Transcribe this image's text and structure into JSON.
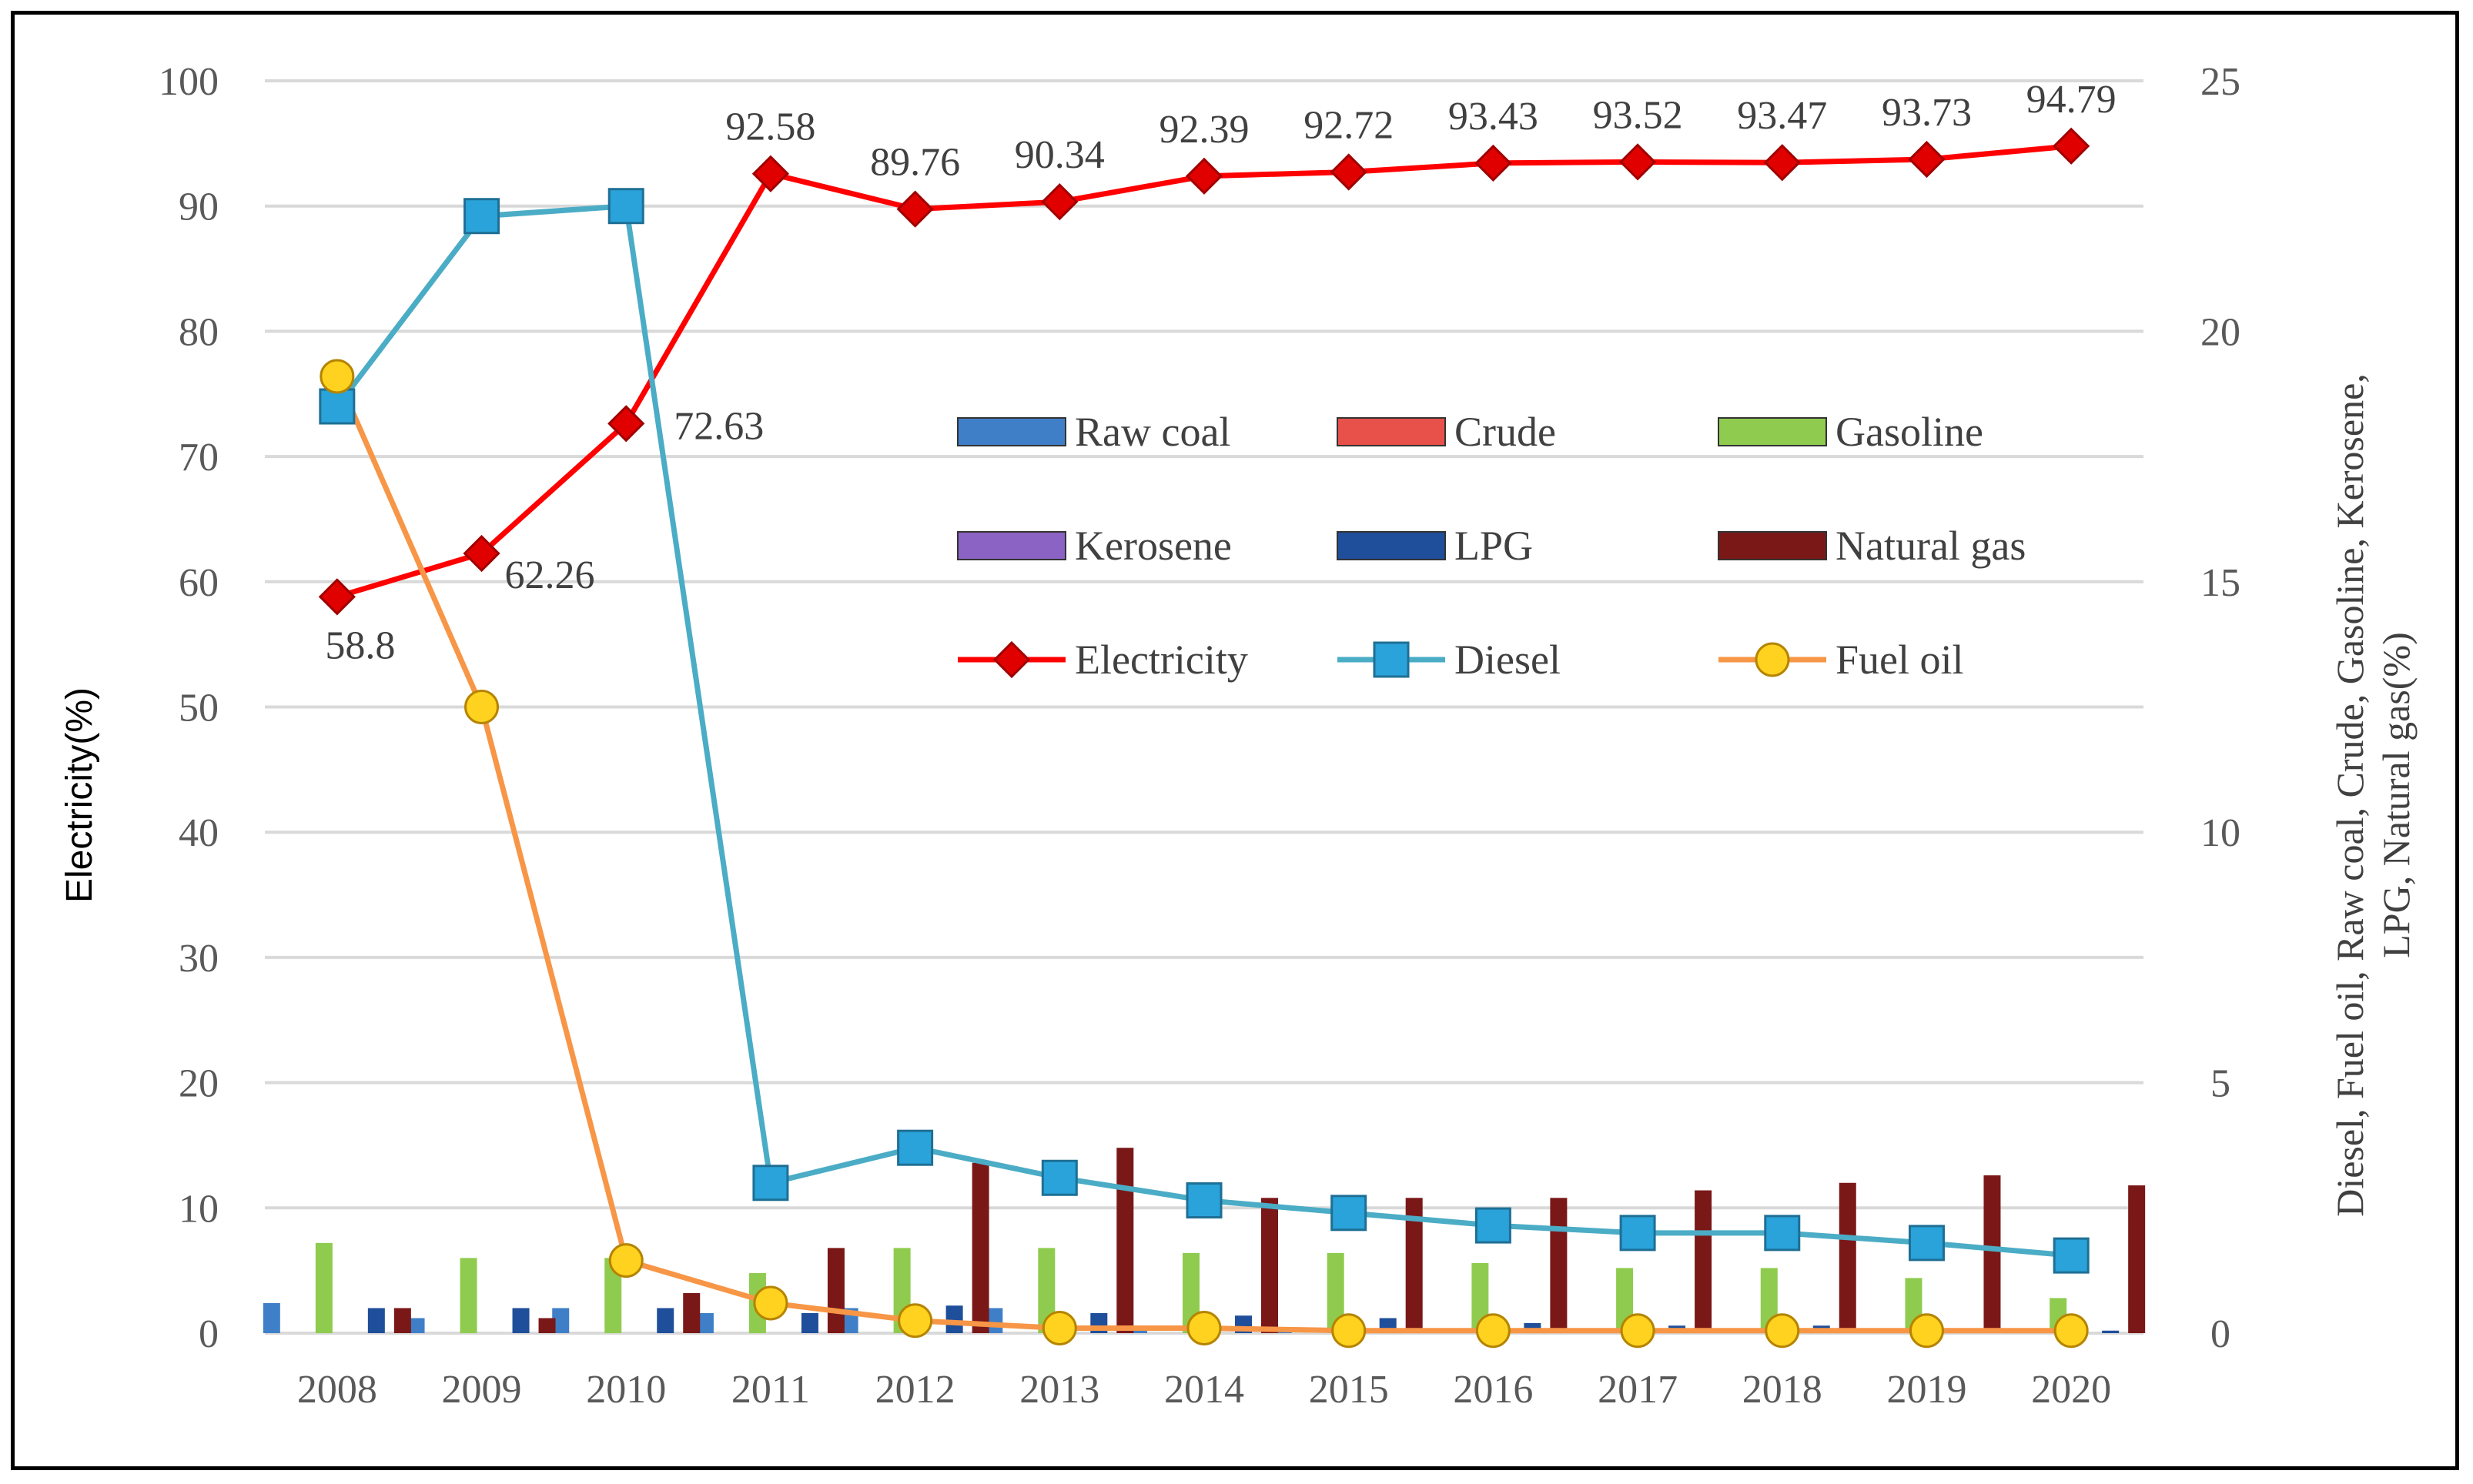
{
  "chart_data": {
    "type": "bar",
    "title": "",
    "categories": [
      "2008",
      "2009",
      "2010",
      "2011",
      "2012",
      "2013",
      "2014",
      "2015",
      "2016",
      "2017",
      "2018",
      "2019",
      "2020"
    ],
    "left_axis": {
      "label": "Electricity(%)",
      "range": [
        0,
        100
      ],
      "ticks": [
        "0",
        "10",
        "20",
        "30",
        "40",
        "50",
        "60",
        "70",
        "80",
        "90",
        "100"
      ]
    },
    "right_axis": {
      "label_line1": "Diesel,   Fuel oil, Raw coal, Crude, Gasoline, Kerosene,",
      "label_line2": "LPG, Natural gas(%)",
      "range": [
        0,
        25
      ],
      "ticks": [
        "0",
        "5",
        "10",
        "15",
        "20",
        "25"
      ]
    },
    "bar_series": [
      {
        "name": "Raw coal",
        "axis": "right",
        "color": "#3f7fc8",
        "values": [
          0.6,
          0.3,
          0.5,
          0.4,
          0.5,
          0.5,
          0.1,
          0.1,
          0.05,
          0.05,
          0.05,
          0.05,
          0.05
        ]
      },
      {
        "name": "Crude",
        "axis": "right",
        "color": "#e8504a",
        "values": [
          0,
          0,
          0,
          0,
          0,
          0,
          0,
          0,
          0,
          0,
          0,
          0,
          0
        ]
      },
      {
        "name": "Gasoline",
        "axis": "right",
        "color": "#8fcb4e",
        "values": [
          1.8,
          1.5,
          1.5,
          1.2,
          1.7,
          1.7,
          1.6,
          1.6,
          1.4,
          1.3,
          1.3,
          1.1,
          0.7
        ]
      },
      {
        "name": "Kerosene",
        "axis": "right",
        "color": "#8b63c4",
        "values": [
          0,
          0,
          0,
          0,
          0,
          0,
          0,
          0,
          0,
          0,
          0,
          0,
          0
        ]
      },
      {
        "name": "LPG",
        "axis": "right",
        "color": "#1f4e9a",
        "values": [
          0.5,
          0.5,
          0.5,
          0.4,
          0.55,
          0.4,
          0.35,
          0.3,
          0.2,
          0.15,
          0.15,
          0.1,
          0.05
        ]
      },
      {
        "name": "Natural gas",
        "axis": "right",
        "color": "#7a1818",
        "values": [
          0.5,
          0.3,
          0.8,
          1.7,
          3.4,
          3.7,
          2.7,
          2.7,
          2.7,
          2.85,
          3.0,
          3.15,
          2.95
        ]
      }
    ],
    "line_series": [
      {
        "name": "Electricity",
        "axis": "left",
        "color": "#ff0000",
        "marker": "diamond",
        "values": [
          58.8,
          62.26,
          72.63,
          92.58,
          89.76,
          90.34,
          92.39,
          92.72,
          93.43,
          93.52,
          93.47,
          93.73,
          94.79
        ]
      },
      {
        "name": "Diesel",
        "axis": "right",
        "color": "#4bacc6",
        "marker": "square",
        "values": [
          18.5,
          22.3,
          22.5,
          3.0,
          3.7,
          3.1,
          2.65,
          2.4,
          2.15,
          2.0,
          2.0,
          1.8,
          1.55
        ]
      },
      {
        "name": "Fuel oil",
        "axis": "right",
        "color": "#f79646",
        "marker": "circle",
        "values": [
          19.1,
          12.5,
          1.45,
          0.6,
          0.25,
          0.1,
          0.1,
          0.05,
          0.05,
          0.05,
          0.05,
          0.05,
          0.05
        ]
      }
    ],
    "electricity_labels": [
      "58.8",
      "62.26",
      "72.63",
      "92.58",
      "89.76",
      "90.34",
      "92.39",
      "92.72",
      "93.43",
      "93.52",
      "93.47",
      "93.73",
      "94.79"
    ],
    "legend": {
      "placement": "center-right",
      "rows": [
        [
          "Raw coal",
          "Crude",
          "Gasoline"
        ],
        [
          "Kerosene",
          "LPG",
          "Natural gas"
        ],
        [
          "Electricity",
          "Diesel",
          "Fuel oil"
        ]
      ]
    },
    "grid": true
  }
}
